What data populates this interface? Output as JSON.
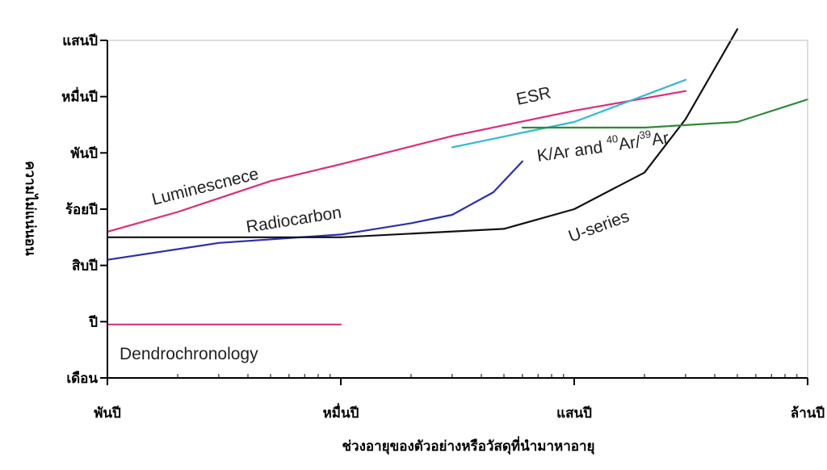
{
  "chart_data": {
    "type": "line",
    "xlabel": "ช่วงอายุของตัวอย่างหรือวัสดุที่นำมาหาอายุ",
    "ylabel": "ความไม่แน่นอน",
    "x_ticks": [
      {
        "label": "พันปี",
        "value": 1000
      },
      {
        "label": "หมื่นปี",
        "value": 10000
      },
      {
        "label": "แสนปี",
        "value": 100000
      },
      {
        "label": "ล้านปี",
        "value": 1000000
      }
    ],
    "y_ticks": [
      {
        "label": "แสนปี",
        "value": 6
      },
      {
        "label": "หมื่นปี",
        "value": 5
      },
      {
        "label": "พันปี",
        "value": 4
      },
      {
        "label": "ร้อยปี",
        "value": 3
      },
      {
        "label": "สิบปี",
        "value": 2
      },
      {
        "label": "ปี",
        "value": 1
      },
      {
        "label": "เดือน",
        "value": 0
      }
    ],
    "x_scale": "log",
    "xlim": [
      1000,
      1000000
    ],
    "ylim": [
      0,
      6
    ],
    "series": [
      {
        "name": "Dendrochronology",
        "color": "#d4377f",
        "x": [
          1000,
          10000
        ],
        "y": [
          0.95,
          0.95
        ]
      },
      {
        "name": "Luminescnece",
        "color": "#de2c78",
        "x": [
          1000,
          2000,
          5000,
          10000,
          30000,
          100000,
          300000
        ],
        "y": [
          2.6,
          2.95,
          3.5,
          3.8,
          4.3,
          4.75,
          5.1
        ]
      },
      {
        "name": "Radiocarbon",
        "color": "#2b2fb0",
        "x": [
          1000,
          3000,
          10000,
          20000,
          30000,
          45000,
          60000
        ],
        "y": [
          2.1,
          2.4,
          2.55,
          2.75,
          2.9,
          3.3,
          3.85
        ]
      },
      {
        "name": "U-series",
        "color": "#111111",
        "x": [
          1000,
          10000,
          50000,
          100000,
          200000,
          300000,
          500000
        ],
        "y": [
          2.5,
          2.5,
          2.65,
          3.0,
          3.65,
          4.6,
          6.2
        ]
      },
      {
        "name": "ESR",
        "color": "#33b8d4",
        "x": [
          30000,
          100000,
          300000
        ],
        "y": [
          4.1,
          4.55,
          5.3
        ]
      },
      {
        "name": "K/Ar and 40Ar/39Ar",
        "color": "#2f8a38",
        "x": [
          60000,
          200000,
          500000,
          1000000
        ],
        "y": [
          4.45,
          4.45,
          4.55,
          4.95
        ]
      }
    ],
    "series_labels": {
      "dendro": "Dendrochronology",
      "lum": "Luminescnece",
      "radio": "Radiocarbon",
      "useries": "U-series",
      "esr": "ESR",
      "kar_prefix": "K/Ar and ",
      "kar_sup1": "40",
      "kar_mid": "Ar/",
      "kar_sup2": "39",
      "kar_suffix": "Ar"
    },
    "grid": false
  }
}
